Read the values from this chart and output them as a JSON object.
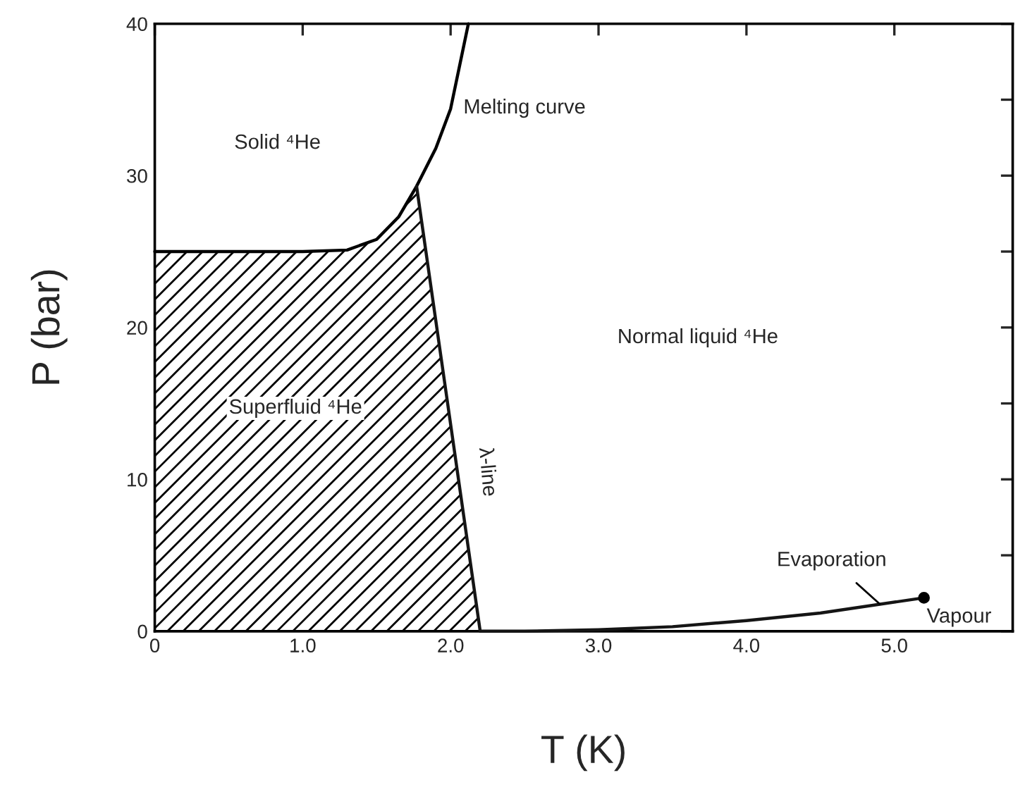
{
  "chart_data": {
    "type": "line",
    "xlabel": "T (K)",
    "ylabel": "P (bar)",
    "xlim": [
      0,
      5.8
    ],
    "ylim": [
      0,
      40
    ],
    "xticks": [
      0,
      {
        "value": 1,
        "label": "1.0"
      },
      {
        "value": 2,
        "label": "2.0"
      },
      {
        "value": 3,
        "label": "3.0"
      },
      {
        "value": 4,
        "label": "4.0"
      },
      {
        "value": 5,
        "label": "5.0"
      }
    ],
    "yticks": [
      0,
      {
        "value": 5,
        "label": null
      },
      10,
      {
        "value": 15,
        "label": null
      },
      20,
      {
        "value": 25,
        "label": null
      },
      30,
      {
        "value": 35,
        "label": null
      },
      40
    ],
    "grid": false,
    "legend": false,
    "series": [
      {
        "color": "#000000",
        "x": [
          0,
          1.0,
          1.3,
          1.5,
          1.65,
          1.77,
          1.9,
          2.0,
          2.12
        ],
        "values": [
          25,
          25,
          25.1,
          25.8,
          27.3,
          29.3,
          31.8,
          34.4,
          40
        ]
      },
      {
        "color": "#151515",
        "x": [
          1.77,
          2.2,
          2.5,
          3.0,
          3.5,
          4.0,
          4.5,
          5.2
        ],
        "values": [
          29.3,
          0,
          0,
          0.1,
          0.3,
          0.7,
          1.2,
          2.2
        ]
      },
      {
        "type": "area",
        "color": "#000000",
        "x": [
          0,
          1.0,
          1.3,
          1.5,
          1.65,
          1.77,
          2.2
        ],
        "values": [
          25,
          25,
          25.1,
          25.8,
          27.3,
          29.3,
          0
        ]
      },
      {
        "type": "scatter",
        "color": "#000000",
        "marker": "circle",
        "x": [
          5.2
        ],
        "values": [
          2.2
        ]
      }
    ],
    "annotations": [
      "Solid ⁴He",
      "Melting curve",
      "Normal liquid ⁴He",
      "Superfluid ⁴He",
      "λ-line",
      {
        "text": "Evaporation",
        "x": 4.9,
        "y": 1.8
      },
      "Vapour"
    ]
  }
}
